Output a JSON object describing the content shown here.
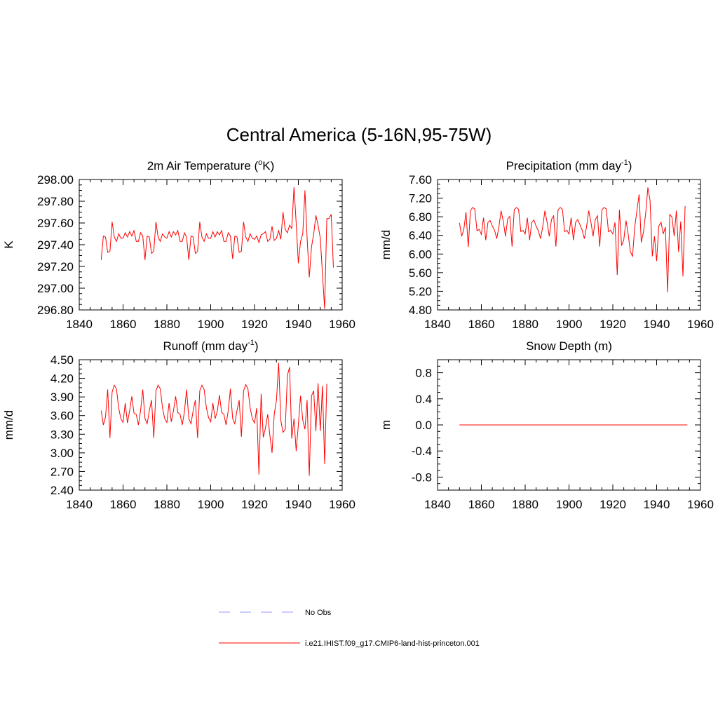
{
  "figure": {
    "title": "Central America (5-16N,95-75W)"
  },
  "legend": {
    "items": [
      {
        "label": "No Obs",
        "color": "#9999ff",
        "style": "dashed"
      },
      {
        "label": "i.e21.IHIST.f09_g17.CMIP6-land-hist-princeton.001",
        "color": "#ff0000",
        "style": "solid"
      }
    ]
  },
  "colors": {
    "model": "#ff0000",
    "obs": "#9999ff",
    "axes": "#000000"
  },
  "chart_data": [
    {
      "type": "line",
      "title": "2m Air Temperature (",
      "title_sup_1": "o",
      "title_mid": "K)",
      "title_sup_2": "",
      "title_end": "",
      "ylabel": "K",
      "xlim": [
        1840,
        1960
      ],
      "ylim": [
        296.8,
        298.0
      ],
      "xticks": [
        1840,
        1860,
        1880,
        1900,
        1920,
        1940,
        1960
      ],
      "xtick_labels": [
        "1840",
        "1860",
        "1880",
        "1900",
        "1920",
        "1940",
        "1960"
      ],
      "yticks": [
        296.8,
        297.0,
        297.2,
        297.4,
        297.6,
        297.8,
        298.0
      ],
      "ytick_labels": [
        "296.80",
        "297.00",
        "297.20",
        "297.40",
        "297.60",
        "297.80",
        "298.00"
      ],
      "grid": false,
      "x_start": 1850,
      "series": [
        {
          "name": "i.e21.IHIST.f09_g17.CMIP6-land-hist-princeton.001",
          "values": [
            297.26,
            297.48,
            297.47,
            297.33,
            297.34,
            297.61,
            297.47,
            297.43,
            297.5,
            297.46,
            297.46,
            297.51,
            297.47,
            297.52,
            297.48,
            297.53,
            297.43,
            297.43,
            297.51,
            297.48,
            297.26,
            297.48,
            297.47,
            297.32,
            297.34,
            297.61,
            297.47,
            297.43,
            297.5,
            297.47,
            297.46,
            297.52,
            297.47,
            297.52,
            297.49,
            297.53,
            297.43,
            297.43,
            297.51,
            297.47,
            297.26,
            297.48,
            297.47,
            297.32,
            297.34,
            297.61,
            297.47,
            297.43,
            297.5,
            297.46,
            297.46,
            297.52,
            297.47,
            297.52,
            297.49,
            297.53,
            297.43,
            297.43,
            297.51,
            297.48,
            297.27,
            297.48,
            297.47,
            297.33,
            297.34,
            297.61,
            297.47,
            297.43,
            297.5,
            297.46,
            297.45,
            297.48,
            297.42,
            297.49,
            297.5,
            297.52,
            297.43,
            297.45,
            297.57,
            297.44,
            297.46,
            297.53,
            297.45,
            297.7,
            297.54,
            297.51,
            297.58,
            297.55,
            297.93,
            297.6,
            297.23,
            297.43,
            297.5,
            297.9,
            297.46,
            297.1,
            297.38,
            297.5,
            297.67,
            297.58,
            297.46,
            297.13,
            296.81,
            297.64,
            297.64,
            297.68,
            297.19
          ]
        }
      ]
    },
    {
      "type": "line",
      "title": "Precipitation (mm day",
      "title_sup_1": "-1",
      "title_mid": ")",
      "title_sup_2": "",
      "title_end": "",
      "ylabel": "mm/d",
      "xlim": [
        1840,
        1960
      ],
      "ylim": [
        4.8,
        7.6
      ],
      "xticks": [
        1840,
        1860,
        1880,
        1900,
        1920,
        1940,
        1960
      ],
      "xtick_labels": [
        "1840",
        "1860",
        "1880",
        "1900",
        "1920",
        "1940",
        "1960"
      ],
      "yticks": [
        4.8,
        5.2,
        5.6,
        6.0,
        6.4,
        6.8,
        7.2,
        7.6
      ],
      "ytick_labels": [
        "4.80",
        "5.20",
        "5.60",
        "6.00",
        "6.40",
        "6.80",
        "7.20",
        "7.60"
      ],
      "grid": false,
      "x_start": 1850,
      "series": [
        {
          "name": "i.e21.IHIST.f09_g17.CMIP6-land-hist-princeton.001",
          "values": [
            6.67,
            6.38,
            6.53,
            6.9,
            6.15,
            6.93,
            7.0,
            6.97,
            6.5,
            6.53,
            6.42,
            6.78,
            6.3,
            6.68,
            6.72,
            6.6,
            6.51,
            6.33,
            6.58,
            6.93,
            6.7,
            6.38,
            6.75,
            6.81,
            6.16,
            6.95,
            7.0,
            6.96,
            6.48,
            6.51,
            6.43,
            6.78,
            6.3,
            6.68,
            6.73,
            6.6,
            6.5,
            6.33,
            6.58,
            6.93,
            6.68,
            6.38,
            6.74,
            6.82,
            6.16,
            6.95,
            7.0,
            6.96,
            6.48,
            6.51,
            6.43,
            6.78,
            6.3,
            6.68,
            6.74,
            6.63,
            6.51,
            6.33,
            6.58,
            6.93,
            6.68,
            6.38,
            6.74,
            6.82,
            6.16,
            6.95,
            7.0,
            6.97,
            6.48,
            6.51,
            6.43,
            6.68,
            5.55,
            6.95,
            6.18,
            6.3,
            6.72,
            6.43,
            6.05,
            5.95,
            6.58,
            6.94,
            7.28,
            6.25,
            6.48,
            6.88,
            7.43,
            7.15,
            5.95,
            6.38,
            5.85,
            6.6,
            6.68,
            6.43,
            6.58,
            5.18,
            6.85,
            6.79,
            6.38,
            6.93,
            6.05,
            6.7,
            5.52,
            7.03
          ]
        }
      ]
    },
    {
      "type": "line",
      "title": "Runoff (mm day",
      "title_sup_1": "-1",
      "title_mid": ")",
      "title_sup_2": "",
      "title_end": "",
      "ylabel": "mm/d",
      "xlim": [
        1840,
        1960
      ],
      "ylim": [
        2.4,
        4.5
      ],
      "xticks": [
        1840,
        1860,
        1880,
        1900,
        1920,
        1940,
        1960
      ],
      "xtick_labels": [
        "1840",
        "1860",
        "1880",
        "1900",
        "1920",
        "1940",
        "1960"
      ],
      "yticks": [
        2.4,
        2.7,
        3.0,
        3.3,
        3.6,
        3.9,
        4.2,
        4.5
      ],
      "ytick_labels": [
        "2.40",
        "2.70",
        "3.00",
        "3.30",
        "3.60",
        "3.90",
        "4.20",
        "4.50"
      ],
      "grid": false,
      "x_start": 1850,
      "series": [
        {
          "name": "i.e21.IHIST.f09_g17.CMIP6-land-hist-princeton.001",
          "values": [
            3.68,
            3.45,
            3.58,
            4.02,
            3.24,
            3.98,
            4.09,
            4.03,
            3.72,
            3.55,
            3.49,
            3.8,
            3.48,
            3.68,
            3.91,
            3.64,
            3.62,
            3.45,
            3.68,
            4.02,
            3.55,
            3.47,
            3.68,
            3.85,
            3.24,
            4.0,
            4.09,
            4.03,
            3.72,
            3.55,
            3.49,
            3.8,
            3.5,
            3.68,
            3.91,
            3.65,
            3.62,
            3.45,
            3.66,
            4.02,
            3.55,
            3.47,
            3.68,
            3.85,
            3.24,
            4.0,
            4.09,
            4.02,
            3.73,
            3.57,
            3.5,
            3.8,
            3.55,
            3.67,
            3.93,
            3.65,
            3.62,
            3.45,
            3.68,
            4.03,
            3.55,
            3.47,
            3.68,
            3.85,
            3.26,
            4.0,
            4.1,
            4.03,
            3.72,
            3.55,
            3.48,
            3.72,
            2.65,
            3.95,
            3.25,
            3.4,
            3.62,
            3.28,
            3.0,
            3.62,
            3.85,
            4.45,
            3.52,
            3.33,
            3.38,
            4.25,
            4.38,
            3.23,
            3.55,
            3.03,
            3.45,
            3.92,
            3.53,
            3.38,
            3.85,
            2.63,
            3.92,
            4.0,
            3.35,
            4.12,
            3.35,
            4.08,
            2.82,
            4.11
          ]
        }
      ]
    },
    {
      "type": "line",
      "title": "Snow Depth (m)",
      "title_sup_1": "",
      "title_mid": "",
      "title_sup_2": "",
      "title_end": "",
      "ylabel": "m",
      "xlim": [
        1840,
        1960
      ],
      "ylim": [
        -1.0,
        1.0
      ],
      "xticks": [
        1840,
        1860,
        1880,
        1900,
        1920,
        1940,
        1960
      ],
      "xtick_labels": [
        "1840",
        "1860",
        "1880",
        "1900",
        "1920",
        "1940",
        "1960"
      ],
      "yticks": [
        -0.8,
        -0.4,
        0.0,
        0.4,
        0.8
      ],
      "ytick_labels": [
        "-0.8",
        "-0.4",
        "0.0",
        "0.4",
        "0.8"
      ],
      "grid": false,
      "x_start": 1850,
      "series": [
        {
          "name": "i.e21.IHIST.f09_g17.CMIP6-land-hist-princeton.001",
          "values": [
            0,
            0,
            0,
            0,
            0,
            0,
            0,
            0,
            0,
            0,
            0,
            0,
            0,
            0,
            0,
            0,
            0,
            0,
            0,
            0,
            0,
            0,
            0,
            0,
            0,
            0,
            0,
            0,
            0,
            0,
            0,
            0,
            0,
            0,
            0,
            0,
            0,
            0,
            0,
            0,
            0,
            0,
            0,
            0,
            0,
            0,
            0,
            0,
            0,
            0,
            0,
            0,
            0,
            0,
            0,
            0,
            0,
            0,
            0,
            0,
            0,
            0,
            0,
            0,
            0,
            0,
            0,
            0,
            0,
            0,
            0,
            0,
            0,
            0,
            0,
            0,
            0,
            0,
            0,
            0,
            0,
            0,
            0,
            0,
            0,
            0,
            0,
            0,
            0,
            0,
            0,
            0,
            0,
            0,
            0,
            0,
            0,
            0,
            0,
            0,
            0,
            0,
            0,
            0,
            0
          ]
        }
      ]
    }
  ]
}
